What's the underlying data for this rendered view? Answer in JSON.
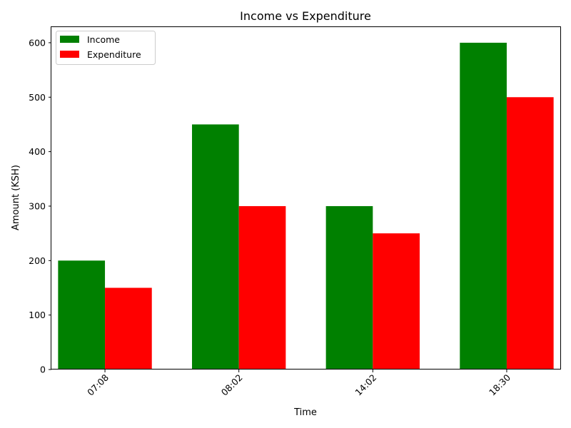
{
  "chart_data": {
    "type": "bar",
    "title": "Income vs Expenditure",
    "xlabel": "Time",
    "ylabel": "Amount (KSH)",
    "categories": [
      "07:08",
      "08:02",
      "14:02",
      "18:30"
    ],
    "series": [
      {
        "name": "Income",
        "values": [
          200,
          450,
          300,
          600
        ],
        "color": "#008000"
      },
      {
        "name": "Expenditure",
        "values": [
          150,
          300,
          250,
          500
        ],
        "color": "#ff0000"
      }
    ],
    "ylim": [
      0,
      630
    ],
    "yticks": [
      0,
      100,
      200,
      300,
      400,
      500,
      600
    ],
    "legend_position": "top-left",
    "grid": false
  }
}
